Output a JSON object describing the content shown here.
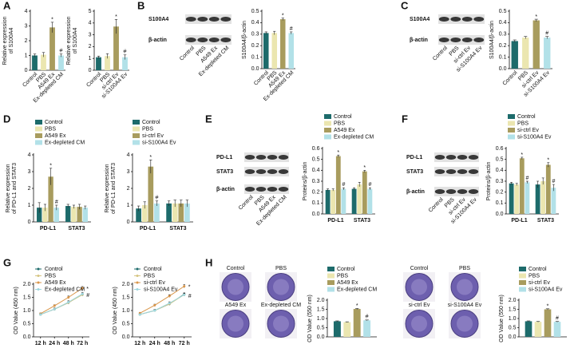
{
  "panels": [
    "A",
    "B",
    "C",
    "D",
    "E",
    "F",
    "G",
    "H"
  ],
  "blots": [
    {
      "bands": [
        "S100A4",
        "β-actin"
      ],
      "lanes": [
        "Control",
        "PBS",
        "A549 Ex",
        "Ex-depleted CM"
      ]
    },
    {
      "bands": [
        "S100A4",
        "β-actin"
      ],
      "lanes": [
        "Control",
        "PBS",
        "si-ctrl Ev",
        "si-S100A4 Ev"
      ]
    },
    {
      "bands": [
        "PD-L1",
        "STAT3",
        "β-actin"
      ],
      "lanes": [
        "Control",
        "PBS",
        "A549 Ex",
        "Ex-depleted CM"
      ]
    },
    {
      "bands": [
        "PD-L1",
        "STAT3",
        "β-actin"
      ],
      "lanes": [
        "Control",
        "PBS",
        "si-ctrl Ev",
        "si-S100A4 Ev"
      ]
    }
  ],
  "colony": [
    {
      "lanes": [
        "Control",
        "PBS",
        "A549 Ex",
        "Ex-depleted CM"
      ]
    },
    {
      "lanes": [
        "Control",
        "PBS",
        "si-ctrl Ev",
        "si-S100A4 Ev"
      ]
    }
  ],
  "chart_data": [
    {
      "type": "bar",
      "ylabel": [
        "Relative expression",
        "of S100A4"
      ],
      "categories": [
        "Control",
        "PBS",
        "A549 Ex",
        "Ex-depleted CM"
      ],
      "values": [
        1.0,
        1.05,
        2.9,
        1.0
      ],
      "errors": [
        0.1,
        0.15,
        0.35,
        0.1
      ],
      "colors": [
        "#1d6b6b",
        "#ebe6b0",
        "#a89c5e",
        "#b2e1e8"
      ],
      "ylim": [
        0,
        4
      ],
      "yticks": [
        0,
        1,
        2,
        3,
        4
      ],
      "annotations": [
        {
          "text": "*",
          "category": "A549 Ex"
        },
        {
          "text": "#",
          "category": "Ex-depleted CM"
        }
      ]
    },
    {
      "type": "bar",
      "ylabel": [
        "Relative expression",
        "of S100A4"
      ],
      "categories": [
        "Control",
        "PBS",
        "si-ctrl Ev",
        "si-S100A4 Ev"
      ],
      "values": [
        1.1,
        1.2,
        3.7,
        1.1
      ],
      "errors": [
        0.1,
        0.2,
        0.6,
        0.2
      ],
      "colors": [
        "#1d6b6b",
        "#ebe6b0",
        "#a89c5e",
        "#b2e1e8"
      ],
      "ylim": [
        0,
        5
      ],
      "yticks": [
        0,
        1,
        2,
        3,
        4,
        5
      ],
      "annotations": [
        {
          "text": "*",
          "category": "si-ctrl Ev"
        },
        {
          "text": "#",
          "category": "si-S100A4 Ev"
        }
      ]
    },
    {
      "type": "bar",
      "ylabel": "S100A4/β-actin",
      "categories": [
        "Control",
        "PBS",
        "A549 Ex",
        "Ex-depleted CM"
      ],
      "values": [
        0.31,
        0.31,
        0.43,
        0.31
      ],
      "errors": [
        0.01,
        0.015,
        0.01,
        0.01
      ],
      "colors": [
        "#1d6b6b",
        "#ebe6b0",
        "#a89c5e",
        "#b2e1e8"
      ],
      "ylim": [
        0,
        0.5
      ],
      "yticks": [
        {
          "value": 0,
          "label": "0.0"
        },
        0.1,
        0.2,
        0.3,
        0.4,
        0.5
      ],
      "annotations": [
        {
          "text": "*",
          "category": "A549 Ex"
        },
        {
          "text": "#",
          "category": "Ex-depleted CM"
        }
      ]
    },
    {
      "type": "bar",
      "ylabel": "S100A4/β-actin",
      "categories": [
        "Control",
        "PBS",
        "si-ctrl Ev",
        "si-S100A4 Ev"
      ],
      "values": [
        0.24,
        0.27,
        0.42,
        0.27
      ],
      "errors": [
        0.01,
        0.01,
        0.01,
        0.01
      ],
      "colors": [
        "#1d6b6b",
        "#ebe6b0",
        "#a89c5e",
        "#b2e1e8"
      ],
      "ylim": [
        0,
        0.5
      ],
      "yticks": [
        {
          "value": 0,
          "label": "0.0"
        },
        0.1,
        0.2,
        0.3,
        0.4,
        0.5
      ],
      "annotations": [
        {
          "text": "*",
          "category": "si-ctrl Ev"
        },
        {
          "text": "#",
          "category": "si-S100A4 Ev"
        }
      ]
    },
    {
      "type": "bar",
      "ylabel": [
        "Relative expression",
        "of PD-L1 and STAT3"
      ],
      "categories": [
        "PD-L1",
        "STAT3"
      ],
      "series": [
        {
          "name": "Control",
          "color": "#1d6b6b",
          "values": [
            0.85,
            0.95
          ],
          "errors": [
            0.3,
            0.1
          ]
        },
        {
          "name": "PBS",
          "color": "#ebe6b0",
          "values": [
            0.85,
            0.9
          ],
          "errors": [
            0.2,
            0.1
          ]
        },
        {
          "name": "A549 Ex",
          "color": "#a89c5e",
          "values": [
            2.7,
            0.9
          ],
          "errors": [
            0.5,
            0.15
          ]
        },
        {
          "name": "Ex-depleted CM",
          "color": "#b2e1e8",
          "values": [
            0.85,
            0.85
          ],
          "errors": [
            0.15,
            0.1
          ]
        }
      ],
      "ylim": [
        0,
        4
      ],
      "yticks": [
        0,
        1,
        2,
        3,
        4
      ],
      "annotations": [
        {
          "text": "*",
          "category": "PD-L1",
          "series": "A549 Ex"
        },
        {
          "text": "#",
          "category": "PD-L1",
          "series": "Ex-depleted CM"
        }
      ]
    },
    {
      "type": "bar",
      "ylabel": [
        "Relative expression",
        "of PD-L1 and STAT3"
      ],
      "categories": [
        "PD-L1",
        "STAT3"
      ],
      "series": [
        {
          "name": "Control",
          "color": "#1d6b6b",
          "values": [
            0.8,
            1.1
          ],
          "errors": [
            0.15,
            0.15
          ]
        },
        {
          "name": "PBS",
          "color": "#ebe6b0",
          "values": [
            1.0,
            1.1
          ],
          "errors": [
            0.2,
            0.2
          ]
        },
        {
          "name": "si-ctrl Ev",
          "color": "#a89c5e",
          "values": [
            3.3,
            1.1
          ],
          "errors": [
            0.4,
            0.2
          ]
        },
        {
          "name": "si-S100A4 Ev",
          "color": "#b2e1e8",
          "values": [
            1.1,
            1.1
          ],
          "errors": [
            0.15,
            0.2
          ]
        }
      ],
      "ylim": [
        0,
        4
      ],
      "yticks": [
        0,
        1,
        2,
        3,
        4
      ],
      "annotations": [
        {
          "text": "*",
          "category": "PD-L1",
          "series": "si-ctrl Ev"
        },
        {
          "text": "#",
          "category": "PD-L1",
          "series": "si-S100A4 Ev"
        }
      ]
    },
    {
      "type": "bar",
      "ylabel": "Proteins/β-actin",
      "categories": [
        "PD-L1",
        "STAT3"
      ],
      "series": [
        {
          "name": "Control",
          "color": "#1d6b6b",
          "values": [
            0.22,
            0.23
          ],
          "errors": [
            0.01,
            0.01
          ]
        },
        {
          "name": "PBS",
          "color": "#ebe6b0",
          "values": [
            0.22,
            0.27
          ],
          "errors": [
            0.01,
            0.02
          ]
        },
        {
          "name": "A549 Ex",
          "color": "#a89c5e",
          "values": [
            0.53,
            0.39
          ],
          "errors": [
            0.01,
            0.01
          ]
        },
        {
          "name": "Ex-depleted CM",
          "color": "#b2e1e8",
          "values": [
            0.23,
            0.23
          ],
          "errors": [
            0.01,
            0.01
          ]
        }
      ],
      "ylim": [
        0,
        0.6
      ],
      "yticks": [
        {
          "value": 0,
          "label": "0.0"
        },
        0.1,
        0.2,
        0.3,
        0.4,
        0.5,
        0.6
      ],
      "annotations": [
        {
          "text": "*",
          "category": "PD-L1",
          "series": "A549 Ex"
        },
        {
          "text": "#",
          "category": "PD-L1",
          "series": "Ex-depleted CM"
        },
        {
          "text": "*",
          "category": "STAT3",
          "series": "A549 Ex"
        },
        {
          "text": "#",
          "category": "STAT3",
          "series": "Ex-depleted CM"
        }
      ]
    },
    {
      "type": "bar",
      "ylabel": "Proteins/β-actin",
      "categories": [
        "PD-L1",
        "STAT3"
      ],
      "series": [
        {
          "name": "Control",
          "color": "#1d6b6b",
          "values": [
            0.28,
            0.27
          ],
          "errors": [
            0.01,
            0.03
          ]
        },
        {
          "name": "PBS",
          "color": "#ebe6b0",
          "values": [
            0.27,
            0.3
          ],
          "errors": [
            0.01,
            0.03
          ]
        },
        {
          "name": "si-ctrl Ev",
          "color": "#a89c5e",
          "values": [
            0.51,
            0.45
          ],
          "errors": [
            0.01,
            0.02
          ]
        },
        {
          "name": "si-S100A4 Ev",
          "color": "#b2e1e8",
          "values": [
            0.29,
            0.24
          ],
          "errors": [
            0.01,
            0.03
          ]
        }
      ],
      "ylim": [
        0,
        0.6
      ],
      "yticks": [
        {
          "value": 0,
          "label": "0.0"
        },
        0.1,
        0.2,
        0.3,
        0.4,
        0.5,
        0.6
      ],
      "annotations": [
        {
          "text": "*",
          "category": "PD-L1",
          "series": "si-ctrl Ev"
        },
        {
          "text": "#",
          "category": "PD-L1",
          "series": "si-S100A4 Ev"
        },
        {
          "text": "*",
          "category": "STAT3",
          "series": "si-ctrl Ev"
        },
        {
          "text": "#",
          "category": "STAT3",
          "series": "si-S100A4 Ev"
        }
      ]
    },
    {
      "type": "line",
      "ylabel": "OD Value (450 nm)",
      "categories": [
        "12 h",
        "24 h",
        "48 h",
        "72 h"
      ],
      "series": [
        {
          "name": "Control",
          "color": "#1d6b6b",
          "values": [
            0.85,
            1.05,
            1.3,
            1.62
          ],
          "errors": [
            0.03,
            0.04,
            0.05,
            0.05
          ]
        },
        {
          "name": "PBS",
          "color": "#d6c582",
          "values": [
            0.85,
            1.05,
            1.3,
            1.6
          ],
          "errors": [
            0.03,
            0.04,
            0.05,
            0.05
          ]
        },
        {
          "name": "A549 Ex",
          "color": "#d9964a",
          "values": [
            0.88,
            1.18,
            1.5,
            1.85
          ],
          "errors": [
            0.03,
            0.04,
            0.05,
            0.06
          ]
        },
        {
          "name": "Ex-depleted CM",
          "color": "#9fd7de",
          "values": [
            0.85,
            1.05,
            1.32,
            1.63
          ],
          "errors": [
            0.03,
            0.04,
            0.05,
            0.05
          ]
        }
      ],
      "ylim": [
        0,
        2
      ],
      "yticks": [
        {
          "value": 0,
          "label": "0.0"
        },
        0.5,
        {
          "value": 1,
          "label": "1.0"
        },
        1.5,
        {
          "value": 2,
          "label": "2.0"
        }
      ],
      "annotations": [
        {
          "text": "*",
          "series": "A549 Ex"
        },
        {
          "text": "#",
          "series": "Ex-depleted CM"
        }
      ]
    },
    {
      "type": "line",
      "ylabel": "OD Value (450 nm)",
      "categories": [
        "12 h",
        "24 h",
        "48 h",
        "72 h"
      ],
      "series": [
        {
          "name": "Control",
          "color": "#1d6b6b",
          "values": [
            0.85,
            1.0,
            1.25,
            1.62
          ],
          "errors": [
            0.03,
            0.04,
            0.05,
            0.05
          ]
        },
        {
          "name": "PBS",
          "color": "#d6c582",
          "values": [
            0.85,
            1.0,
            1.25,
            1.6
          ],
          "errors": [
            0.03,
            0.04,
            0.05,
            0.05
          ]
        },
        {
          "name": "si-ctrl Ev",
          "color": "#d9964a",
          "values": [
            0.9,
            1.2,
            1.55,
            1.92
          ],
          "errors": [
            0.03,
            0.04,
            0.05,
            0.06
          ]
        },
        {
          "name": "si-S100A4 Ev",
          "color": "#9fd7de",
          "values": [
            0.85,
            1.0,
            1.28,
            1.6
          ],
          "errors": [
            0.03,
            0.04,
            0.05,
            0.05
          ]
        }
      ],
      "ylim": [
        0,
        2
      ],
      "yticks": [
        {
          "value": 0,
          "label": "0.0"
        },
        0.5,
        {
          "value": 1,
          "label": "1.0"
        },
        1.5,
        {
          "value": 2,
          "label": "2.0"
        }
      ],
      "annotations": [
        {
          "text": "*",
          "series": "si-ctrl Ev"
        },
        {
          "text": "#",
          "series": "si-S100A4 Ev"
        }
      ]
    },
    {
      "type": "bar",
      "ylabel": "OD Value (550 nm)",
      "categories": [
        null
      ],
      "series": [
        {
          "name": "Control",
          "color": "#1d6b6b",
          "values": [
            0.85
          ],
          "errors": [
            0.02
          ]
        },
        {
          "name": "PBS",
          "color": "#ebe6b0",
          "values": [
            0.8
          ],
          "errors": [
            0.02
          ]
        },
        {
          "name": "A549 Ex",
          "color": "#a89c5e",
          "values": [
            1.52
          ],
          "errors": [
            0.03
          ]
        },
        {
          "name": "Ex-depleted CM",
          "color": "#b2e1e8",
          "values": [
            0.9
          ],
          "errors": [
            0.02
          ]
        }
      ],
      "ylim": [
        0,
        2
      ],
      "yticks": [
        {
          "value": 0,
          "label": "0.0"
        },
        0.5,
        {
          "value": 1,
          "label": "1.0"
        },
        1.5,
        {
          "value": 2,
          "label": "2.0"
        }
      ],
      "annotations": [
        {
          "text": "*",
          "series": "A549 Ex"
        },
        {
          "text": "#",
          "series": "Ex-depleted CM"
        }
      ]
    },
    {
      "type": "bar",
      "ylabel": "OD Value (550 nm)",
      "categories": [
        null
      ],
      "series": [
        {
          "name": "Control",
          "color": "#1d6b6b",
          "values": [
            0.85
          ],
          "errors": [
            0.02
          ]
        },
        {
          "name": "PBS",
          "color": "#ebe6b0",
          "values": [
            0.82
          ],
          "errors": [
            0.02
          ]
        },
        {
          "name": "si-ctrl Ev",
          "color": "#a89c5e",
          "values": [
            1.5
          ],
          "errors": [
            0.03
          ]
        },
        {
          "name": "si-S100A4 Ev",
          "color": "#b2e1e8",
          "values": [
            0.82
          ],
          "errors": [
            0.02
          ]
        }
      ],
      "ylim": [
        0,
        2
      ],
      "yticks": [
        {
          "value": 0,
          "label": "0.0"
        },
        0.5,
        {
          "value": 1,
          "label": "1.0"
        },
        1.5,
        {
          "value": 2,
          "label": "2.0"
        }
      ],
      "annotations": [
        {
          "text": "*",
          "series": "si-ctrl Ev"
        },
        {
          "text": "#",
          "series": "si-S100A4 Ev"
        }
      ]
    }
  ]
}
